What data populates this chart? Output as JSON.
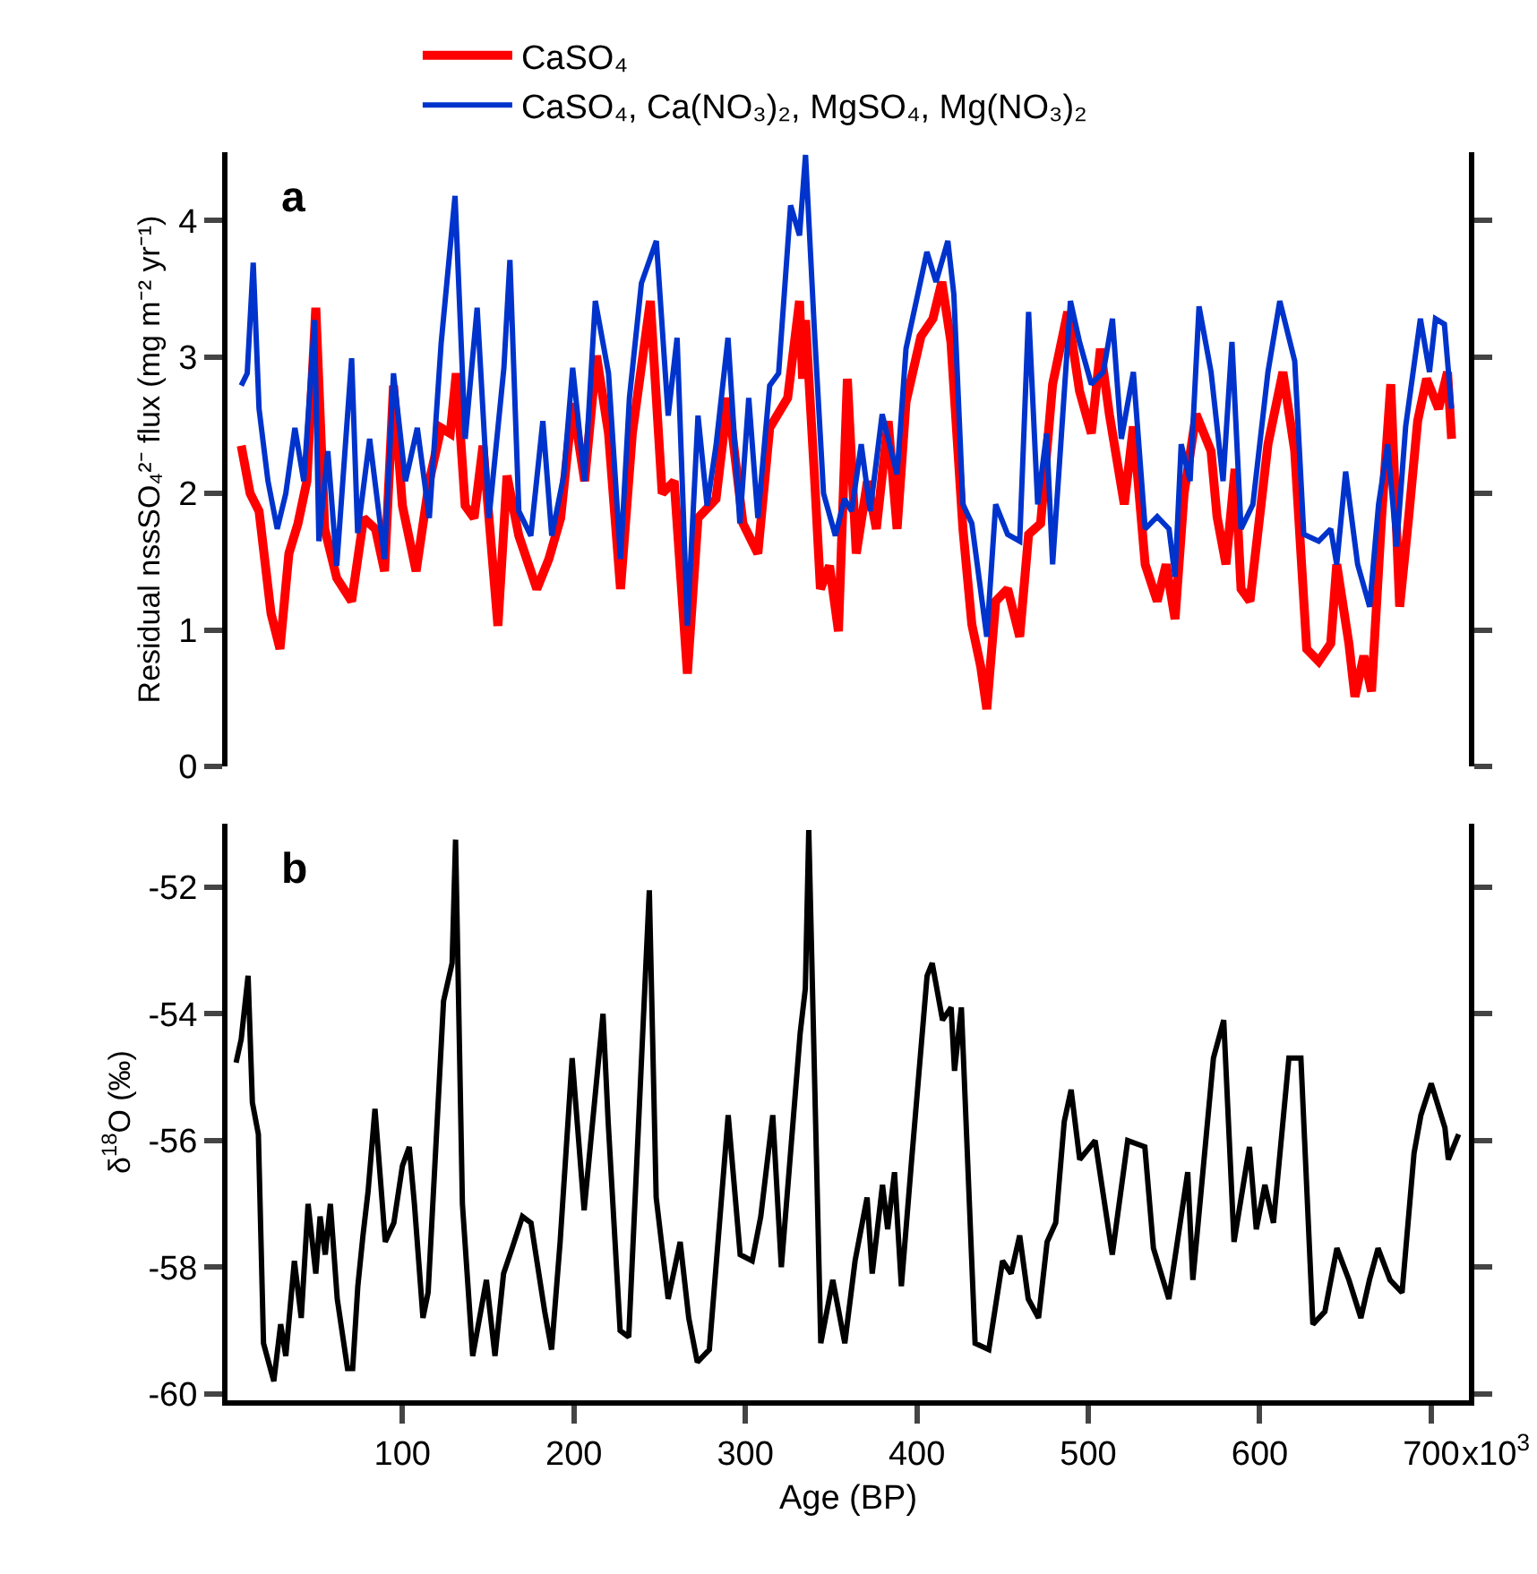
{
  "chart_data": [
    {
      "type": "line",
      "ylabel": "Residual nssSO₄²⁻ flux (mg m⁻² yr⁻¹)",
      "annotations": [
        "a"
      ],
      "legend": "top",
      "tick_labels": "y",
      "xlim": [
        -2,
        722
      ],
      "ylim": [
        0,
        4.5
      ],
      "yticks": [
        0,
        1,
        2,
        3,
        4
      ],
      "series": [
        {
          "name": "CaSO₄",
          "color": "#ff0000",
          "x": [
            6,
            11.2,
            16.4,
            23.4,
            28.6,
            33.8,
            39.1,
            44.3,
            49.5,
            54.7,
            61.7,
            70.4,
            77.4,
            84.3,
            89.6,
            94.8,
            100,
            108,
            115.7,
            122.6,
            127.9,
            131.4,
            136.6,
            141.8,
            147,
            155.7,
            161,
            167.9,
            178.4,
            185.4,
            192.3,
            199.3,
            206.3,
            213.2,
            220.2,
            227.2,
            234.1,
            244.6,
            251.5,
            258.5,
            266.2,
            272.4,
            282.9,
            289.9,
            298.6,
            307.3,
            314.2,
            324.7,
            331.6,
            333.4,
            335.1,
            340.3,
            343.8,
            349.1,
            354.3,
            359.5,
            364.7,
            371.2,
            376.4,
            383.3,
            388.5,
            393.7,
            402.4,
            409.4,
            414.6,
            419.9,
            426.9,
            432.1,
            437.3,
            440.8,
            446,
            453,
            460,
            465.2,
            472.2,
            479.2,
            488,
            494.9,
            501.8,
            507.1,
            512.3,
            521,
            526.3,
            533.2,
            540.2,
            545.4,
            550.6,
            555.9,
            562.9,
            571.6,
            575.1,
            580.3,
            585.6,
            589.1,
            594.3,
            604.8,
            613.5,
            620.4,
            627.4,
            634.4,
            641.4,
            644.9,
            652,
            655.5,
            660.7,
            665.2,
            671.1,
            676.4,
            681.6,
            686.9,
            692.1,
            697.3,
            704.3,
            709.5,
            711.9
          ],
          "values": [
            2.35,
            2.0,
            1.87,
            1.12,
            0.86,
            1.56,
            1.78,
            2.09,
            3.36,
            1.74,
            1.38,
            1.21,
            1.82,
            1.74,
            1.43,
            2.79,
            1.91,
            1.43,
            2.09,
            2.48,
            2.44,
            2.88,
            1.91,
            1.82,
            2.35,
            1.03,
            2.13,
            1.69,
            1.3,
            1.52,
            1.82,
            2.66,
            2.09,
            3.01,
            2.44,
            1.3,
            2.44,
            3.41,
            2.0,
            2.09,
            0.68,
            1.82,
            1.96,
            2.7,
            1.78,
            1.56,
            2.48,
            2.7,
            3.41,
            2.84,
            3.27,
            2.13,
            1.3,
            1.47,
            0.99,
            2.84,
            1.56,
            2.09,
            1.74,
            2.53,
            1.74,
            2.67,
            3.15,
            3.28,
            3.55,
            3.11,
            1.74,
            1.04,
            0.73,
            0.42,
            1.21,
            1.3,
            0.95,
            1.7,
            1.78,
            2.8,
            3.33,
            2.75,
            2.44,
            3.06,
            2.58,
            1.92,
            2.49,
            1.48,
            1.21,
            1.48,
            1.08,
            2.0,
            2.58,
            2.31,
            1.83,
            1.48,
            2.18,
            1.3,
            1.21,
            2.36,
            2.89,
            2.31,
            0.86,
            0.77,
            0.9,
            1.48,
            0.9,
            0.51,
            0.81,
            0.55,
            1.83,
            2.8,
            1.17,
            1.83,
            2.53,
            2.84,
            2.62,
            2.89,
            2.4
          ]
        },
        {
          "name": "CaSO₄, Ca(NO₃)₂, MgSO₄, Mg(NO₃)₂",
          "color": "#0033cc",
          "x": [
            6,
            9.5,
            13,
            16.4,
            21.6,
            27,
            32,
            37.3,
            42.5,
            48.8,
            51.3,
            56.5,
            61.7,
            70.4,
            73.9,
            80.9,
            89.6,
            94.8,
            101.8,
            108.7,
            115.7,
            122.6,
            130.7,
            136.6,
            143.6,
            150.5,
            159.2,
            162.7,
            167.9,
            174.9,
            181.9,
            187.1,
            194.1,
            199.3,
            206.3,
            212.5,
            220.2,
            227.2,
            232.4,
            239.4,
            248.1,
            255,
            260.2,
            266.2,
            272.4,
            277.7,
            282.9,
            289.9,
            296.8,
            302,
            307.3,
            314.2,
            319.4,
            326.4,
            331.6,
            335.1,
            340.3,
            345.6,
            352.5,
            357.8,
            362,
            367.6,
            372.8,
            379.8,
            388.5,
            393.7,
            405.9,
            411.2,
            418.1,
            421.6,
            426.9,
            432.1,
            440.8,
            446,
            453,
            460,
            465.2,
            470.5,
            475.7,
            479.2,
            484.4,
            489.6,
            494.9,
            501.8,
            508.8,
            514.1,
            519.3,
            526.3,
            533.2,
            540.2,
            547.1,
            550.6,
            554.2,
            559.4,
            564.6,
            571.6,
            578.6,
            583.8,
            589.1,
            596,
            604.8,
            611.7,
            620.4,
            625.7,
            634.4,
            641.4,
            644.9,
            650.1,
            657.1,
            664.1,
            669.3,
            674.6,
            679.8,
            685.1,
            693.7,
            699,
            702.5,
            707.7,
            711.9
          ],
          "values": [
            2.79,
            2.88,
            3.69,
            2.62,
            2.09,
            1.74,
            2.0,
            2.48,
            2.09,
            3.27,
            1.65,
            2.31,
            1.47,
            2.99,
            1.71,
            2.4,
            1.52,
            2.88,
            2.09,
            2.48,
            1.82,
            3.1,
            4.18,
            2.4,
            3.36,
            1.82,
            2.92,
            3.71,
            1.87,
            1.69,
            2.53,
            1.69,
            2.13,
            2.92,
            2.09,
            3.41,
            2.88,
            1.52,
            2.7,
            3.54,
            3.85,
            2.57,
            3.14,
            1.03,
            2.57,
            1.91,
            2.35,
            3.14,
            1.78,
            2.7,
            1.82,
            2.79,
            2.88,
            4.11,
            3.89,
            4.48,
            3.19,
            2.0,
            1.69,
            1.96,
            1.87,
            2.36,
            1.87,
            2.58,
            2.14,
            3.06,
            3.77,
            3.55,
            3.85,
            3.46,
            1.92,
            1.78,
            0.95,
            1.92,
            1.7,
            1.65,
            3.33,
            1.92,
            2.44,
            1.48,
            2.44,
            3.41,
            3.11,
            2.8,
            2.89,
            3.28,
            2.4,
            2.89,
            1.74,
            1.83,
            1.74,
            1.39,
            2.36,
            2.09,
            3.37,
            2.89,
            2.09,
            3.11,
            1.74,
            1.92,
            2.89,
            3.41,
            2.97,
            1.7,
            1.65,
            1.74,
            1.48,
            2.16,
            1.48,
            1.17,
            1.92,
            2.36,
            1.61,
            2.49,
            3.28,
            2.89,
            3.28,
            3.24,
            2.62
          ]
        }
      ]
    },
    {
      "type": "line",
      "xlabel": "Age (BP)",
      "ylabel": "δ$^{18}$O (‰)",
      "annotations": [
        "b",
        "x10$^{3}$"
      ],
      "xlim": [
        -2,
        722
      ],
      "xticks": [
        100,
        200,
        300,
        400,
        500,
        600,
        700
      ],
      "ylim": [
        -60.1,
        -51
      ],
      "yticks": [
        -60,
        -58,
        -56,
        -54,
        -52
      ],
      "series": [
        {
          "color": "#000000",
          "x": [
            3,
            6,
            10,
            12.5,
            16,
            19,
            25,
            29,
            32,
            37,
            41,
            45,
            49.5,
            52,
            55,
            58,
            62,
            68,
            71,
            74,
            77,
            80,
            84,
            90,
            95,
            100,
            104,
            107,
            112,
            115,
            124,
            129,
            131,
            135,
            141,
            149,
            154,
            159,
            164,
            170,
            175,
            183,
            187,
            192,
            199,
            206,
            217,
            220,
            227,
            232,
            244,
            248,
            255,
            262,
            267,
            272,
            279,
            290,
            297,
            304,
            309,
            316,
            321,
            332,
            335,
            337,
            344,
            351,
            358,
            364,
            371,
            374,
            380,
            383,
            387,
            391,
            397,
            406,
            409,
            415,
            420,
            422,
            426,
            434,
            442,
            450,
            455,
            460,
            465,
            471,
            476,
            481,
            486,
            490,
            495,
            504,
            514,
            523,
            533,
            538,
            547,
            558,
            561,
            573,
            579,
            585,
            594,
            598,
            603,
            608,
            617,
            624,
            631,
            638,
            645,
            652,
            659,
            664,
            669,
            676,
            683,
            690,
            694,
            700,
            708,
            710,
            716
          ],
          "values": [
            -54.77,
            -54.4,
            -53.4,
            -55.4,
            -55.9,
            -59.2,
            -59.8,
            -58.9,
            -59.4,
            -57.9,
            -58.8,
            -57.0,
            -58.1,
            -57.2,
            -57.8,
            -57.0,
            -58.5,
            -59.6,
            -59.6,
            -58.3,
            -57.5,
            -56.8,
            -55.5,
            -57.6,
            -57.3,
            -56.4,
            -56.1,
            -57.0,
            -58.8,
            -58.4,
            -53.8,
            -53.2,
            -51.25,
            -57.0,
            -59.4,
            -58.2,
            -59.4,
            -58.1,
            -57.7,
            -57.2,
            -57.3,
            -58.7,
            -59.3,
            -57.6,
            -54.7,
            -57.1,
            -54.0,
            -55.7,
            -59.0,
            -59.1,
            -52.05,
            -56.9,
            -58.5,
            -57.6,
            -58.8,
            -59.5,
            -59.3,
            -55.6,
            -57.8,
            -57.9,
            -57.2,
            -55.6,
            -58.0,
            -54.3,
            -53.6,
            -51.1,
            -59.2,
            -58.2,
            -59.2,
            -57.9,
            -56.9,
            -58.1,
            -56.7,
            -57.4,
            -56.5,
            -58.3,
            -56.3,
            -53.4,
            -53.2,
            -54.1,
            -53.9,
            -54.9,
            -53.9,
            -59.2,
            -59.3,
            -57.9,
            -58.1,
            -57.5,
            -58.5,
            -58.8,
            -57.6,
            -57.3,
            -55.7,
            -55.2,
            -56.3,
            -56.0,
            -57.8,
            -56.0,
            -56.1,
            -57.7,
            -58.5,
            -56.5,
            -58.2,
            -54.7,
            -54.1,
            -57.6,
            -56.1,
            -57.4,
            -56.7,
            -57.3,
            -54.7,
            -54.7,
            -58.9,
            -58.7,
            -57.7,
            -58.2,
            -58.8,
            -58.2,
            -57.7,
            -58.2,
            -58.4,
            -56.2,
            -55.6,
            -55.1,
            -55.8,
            -56.3,
            -55.9
          ]
        }
      ]
    }
  ]
}
